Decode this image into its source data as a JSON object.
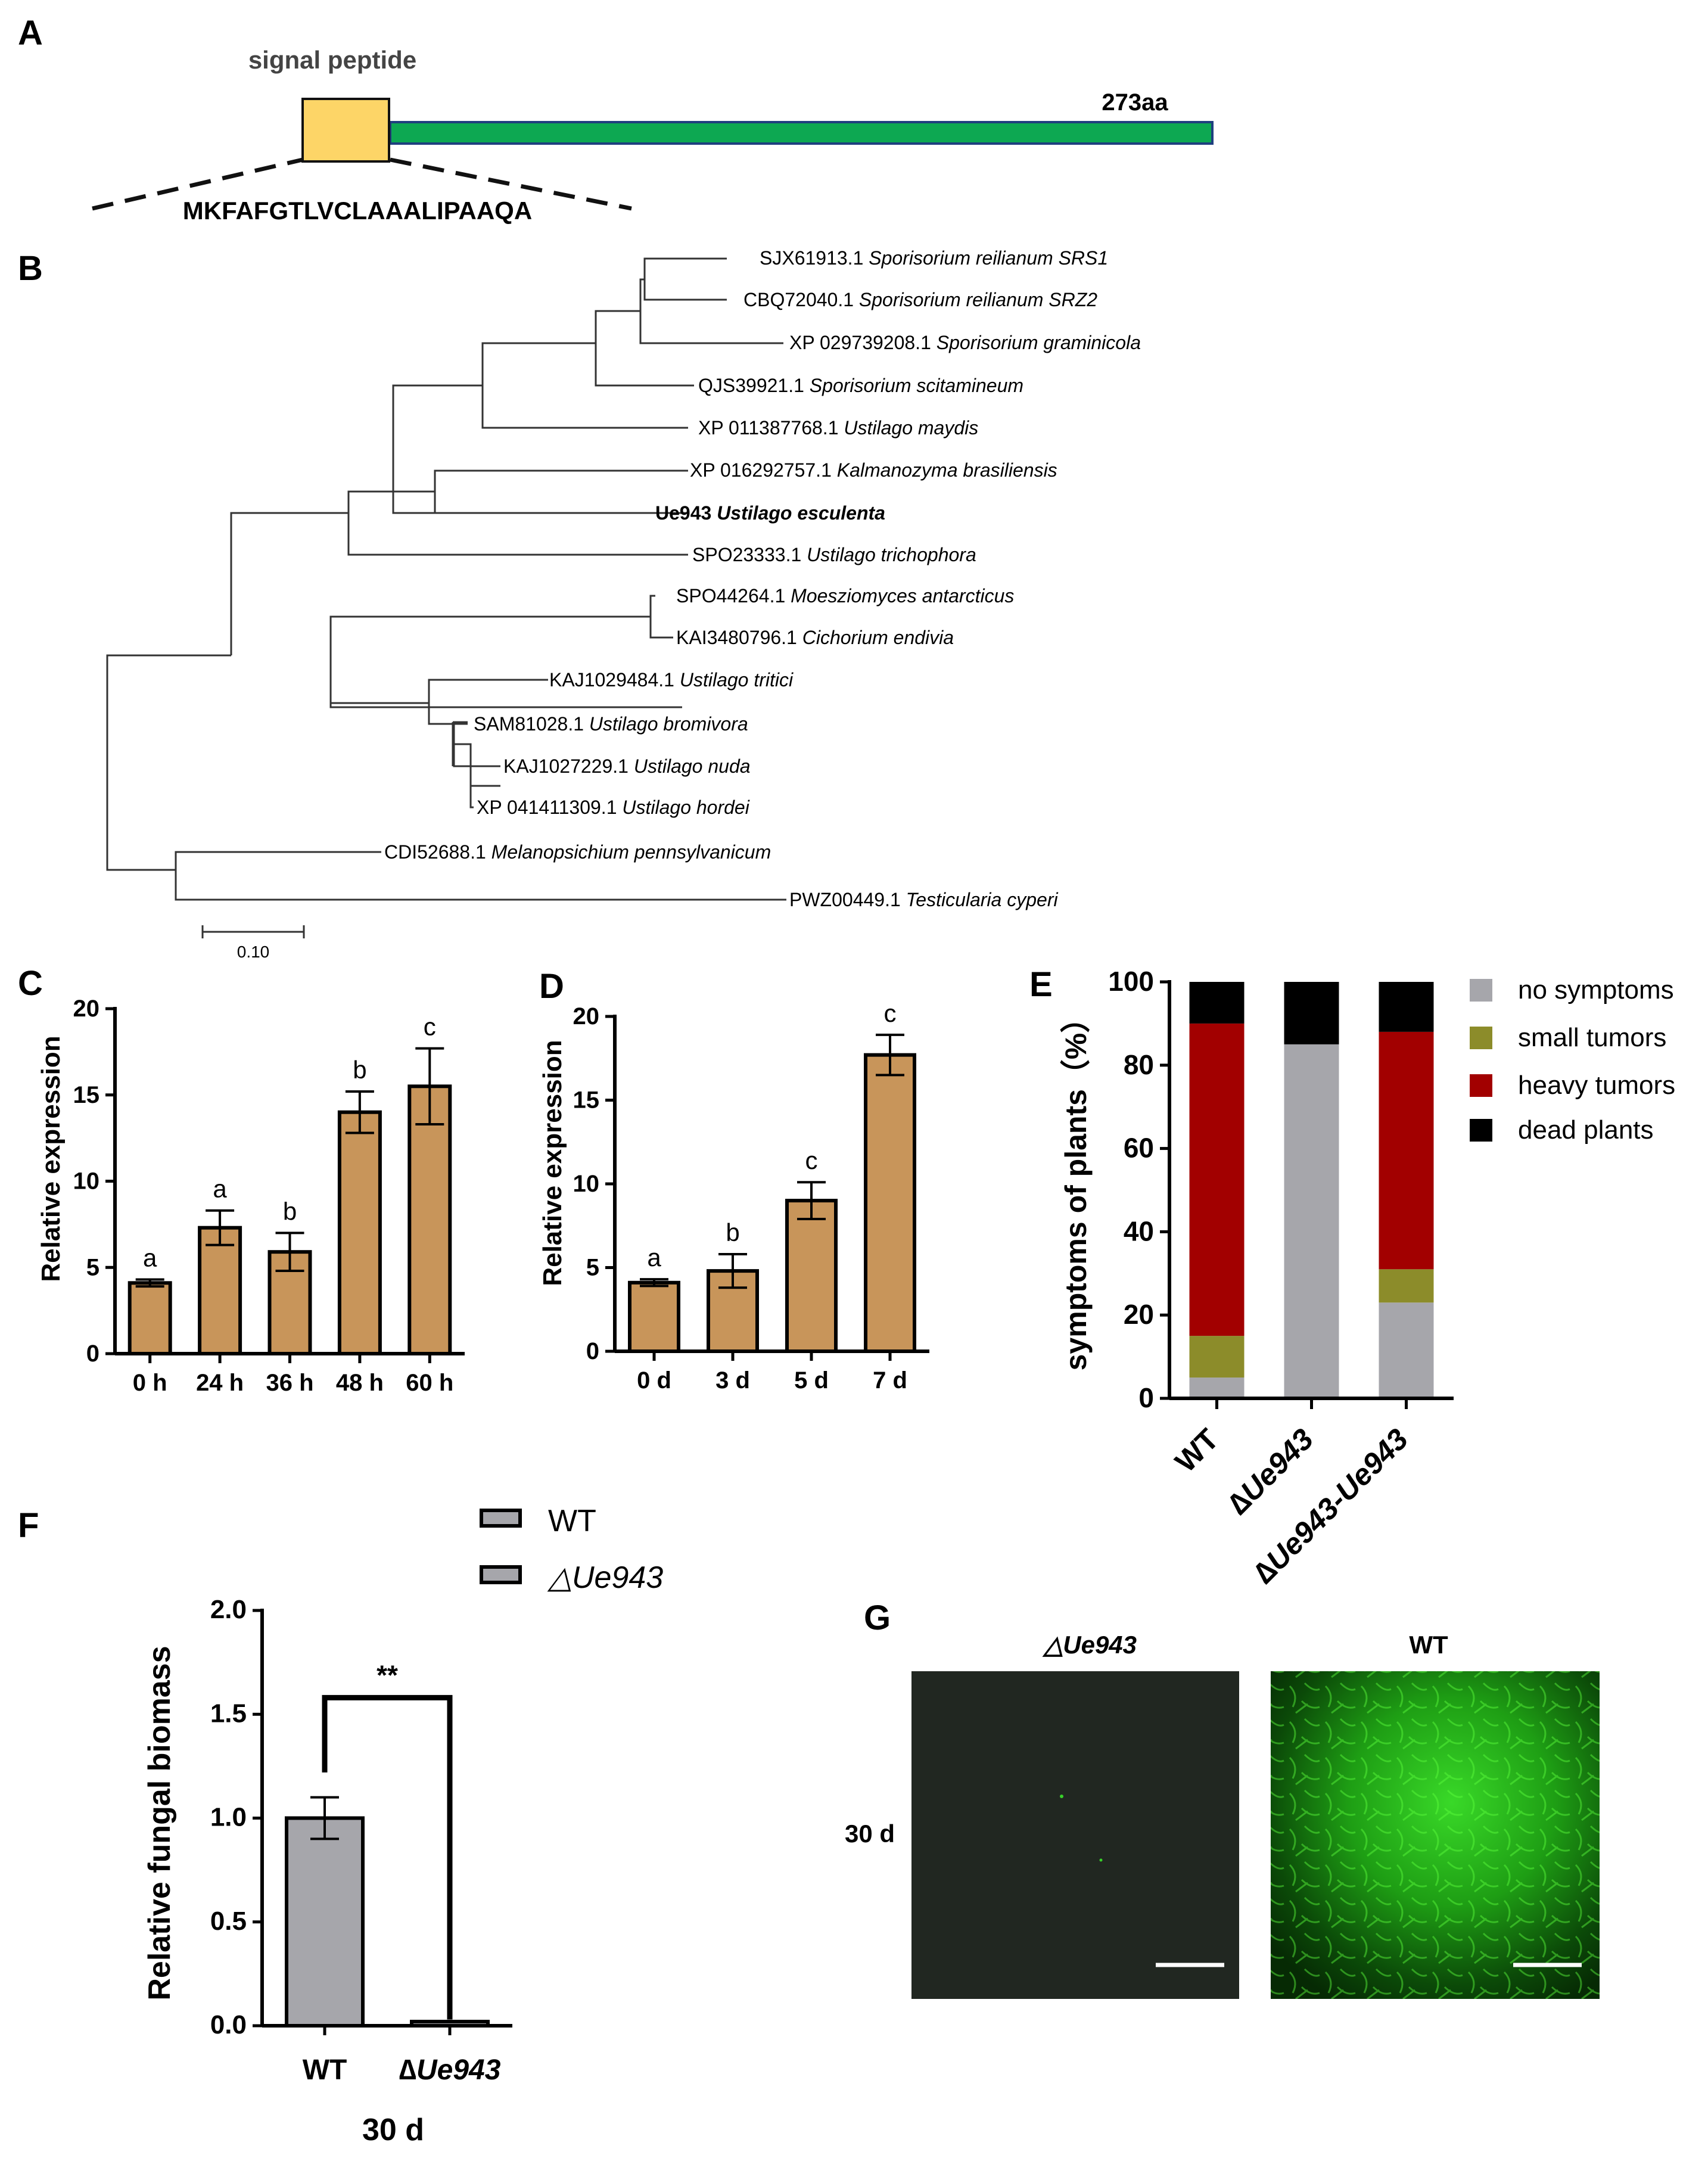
{
  "panels": {
    "a": {
      "letter": "A",
      "signal_label": "signal peptide",
      "length_label": "273aa",
      "sequence": "MKFAFGTLVCLAAALIPAAQA",
      "colors": {
        "signal_box": "#FDD567",
        "domain_bar": "#0DA852"
      }
    },
    "b": {
      "letter": "B",
      "scale_label": "0.10",
      "taxa": [
        {
          "acc": "SJX61913.1",
          "species": "Sporisorium reilianum SRS1"
        },
        {
          "acc": "CBQ72040.1",
          "species": "Sporisorium reilianum SRZ2"
        },
        {
          "acc": "XP 029739208.1",
          "species": "Sporisorium graminicola"
        },
        {
          "acc": "QJS39921.1",
          "species": "Sporisorium scitamineum"
        },
        {
          "acc": "XP 011387768.1",
          "species": "Ustilago maydis"
        },
        {
          "acc": "XP 016292757.1",
          "species": "Kalmanozyma brasiliensis"
        },
        {
          "acc": "Ue943",
          "species": "Ustilago esculenta",
          "bold": true
        },
        {
          "acc": "SPO23333.1",
          "species": "Ustilago trichophora"
        },
        {
          "acc": "SPO44264.1",
          "species": "Moesziomyces antarcticus"
        },
        {
          "acc": "KAI3480796.1",
          "species": "Cichorium endivia"
        },
        {
          "acc": "KAJ1029484.1",
          "species": "Ustilago tritici"
        },
        {
          "acc": "SAM81028.1",
          "species": "Ustilago bromivora"
        },
        {
          "acc": "KAJ1027229.1",
          "species": "Ustilago nuda"
        },
        {
          "acc": "XP 041411309.1",
          "species": "Ustilago hordei"
        },
        {
          "acc": "CDI52688.1",
          "species": "Melanopsichium pennsylvanicum"
        },
        {
          "acc": "PWZ00449.1",
          "species": "Testicularia cyperi"
        }
      ]
    },
    "c": {
      "letter": "C"
    },
    "d": {
      "letter": "D"
    },
    "e": {
      "letter": "E"
    },
    "f": {
      "letter": "F"
    },
    "g": {
      "letter": "G",
      "col_labels": [
        "△Ue943",
        "WT"
      ],
      "row_label": "30 d"
    }
  },
  "chart_data": [
    {
      "id": "C",
      "type": "bar",
      "ylabel": "Relative expression",
      "ylim": [
        0,
        20
      ],
      "yticks": [
        "0",
        "5",
        "10",
        "15",
        "20"
      ],
      "categories": [
        "0 h",
        "24 h",
        "36 h",
        "48 h",
        "60 h"
      ],
      "values": [
        4.1,
        7.3,
        5.9,
        14.0,
        15.5
      ],
      "errors": [
        0.2,
        1.0,
        1.1,
        1.2,
        2.2
      ],
      "letters": [
        "a",
        "a",
        "b",
        "b",
        "c"
      ],
      "color": "#C8955A"
    },
    {
      "id": "D",
      "type": "bar",
      "ylabel": "Relative expression",
      "ylim": [
        0,
        20
      ],
      "yticks": [
        "0",
        "5",
        "10",
        "15",
        "20"
      ],
      "categories": [
        "0 d",
        "3 d",
        "5 d",
        "7 d"
      ],
      "values": [
        4.1,
        4.8,
        9.0,
        17.7
      ],
      "errors": [
        0.2,
        1.0,
        1.1,
        1.2
      ],
      "letters": [
        "a",
        "b",
        "c",
        "c"
      ],
      "color": "#C8955A"
    },
    {
      "id": "E",
      "type": "bar",
      "stacked": true,
      "ylabel": "symptoms of plants（%）",
      "ylim": [
        0,
        100
      ],
      "yticks": [
        "0",
        "20",
        "40",
        "60",
        "80",
        "100"
      ],
      "categories": [
        "WT",
        "∆Ue943",
        "∆Ue943-Ue943"
      ],
      "series": [
        {
          "name": "no symptoms",
          "color": "#A6A6AB",
          "values": [
            5,
            85,
            23
          ]
        },
        {
          "name": "small tumors",
          "color": "#8C8C2A",
          "values": [
            10,
            0,
            8
          ]
        },
        {
          "name": "heavy tumors",
          "color": "#A20000",
          "values": [
            75,
            0,
            57
          ]
        },
        {
          "name": "dead plants",
          "color": "#000000",
          "values": [
            10,
            15,
            12
          ]
        }
      ],
      "legend": "right"
    },
    {
      "id": "F",
      "type": "bar",
      "ylabel": "Relative fungal biomass",
      "xlabel": "30 d",
      "ylim": [
        0,
        2.0
      ],
      "yticks": [
        "0.0",
        "0.5",
        "1.0",
        "1.5",
        "2.0"
      ],
      "categories": [
        "WT",
        "∆Ue943"
      ],
      "values": [
        1.0,
        0.02
      ],
      "errors": [
        0.1,
        0
      ],
      "significance": "**",
      "legend_entries": [
        "WT",
        "△Ue943"
      ],
      "color": "#A6A6AB"
    }
  ]
}
